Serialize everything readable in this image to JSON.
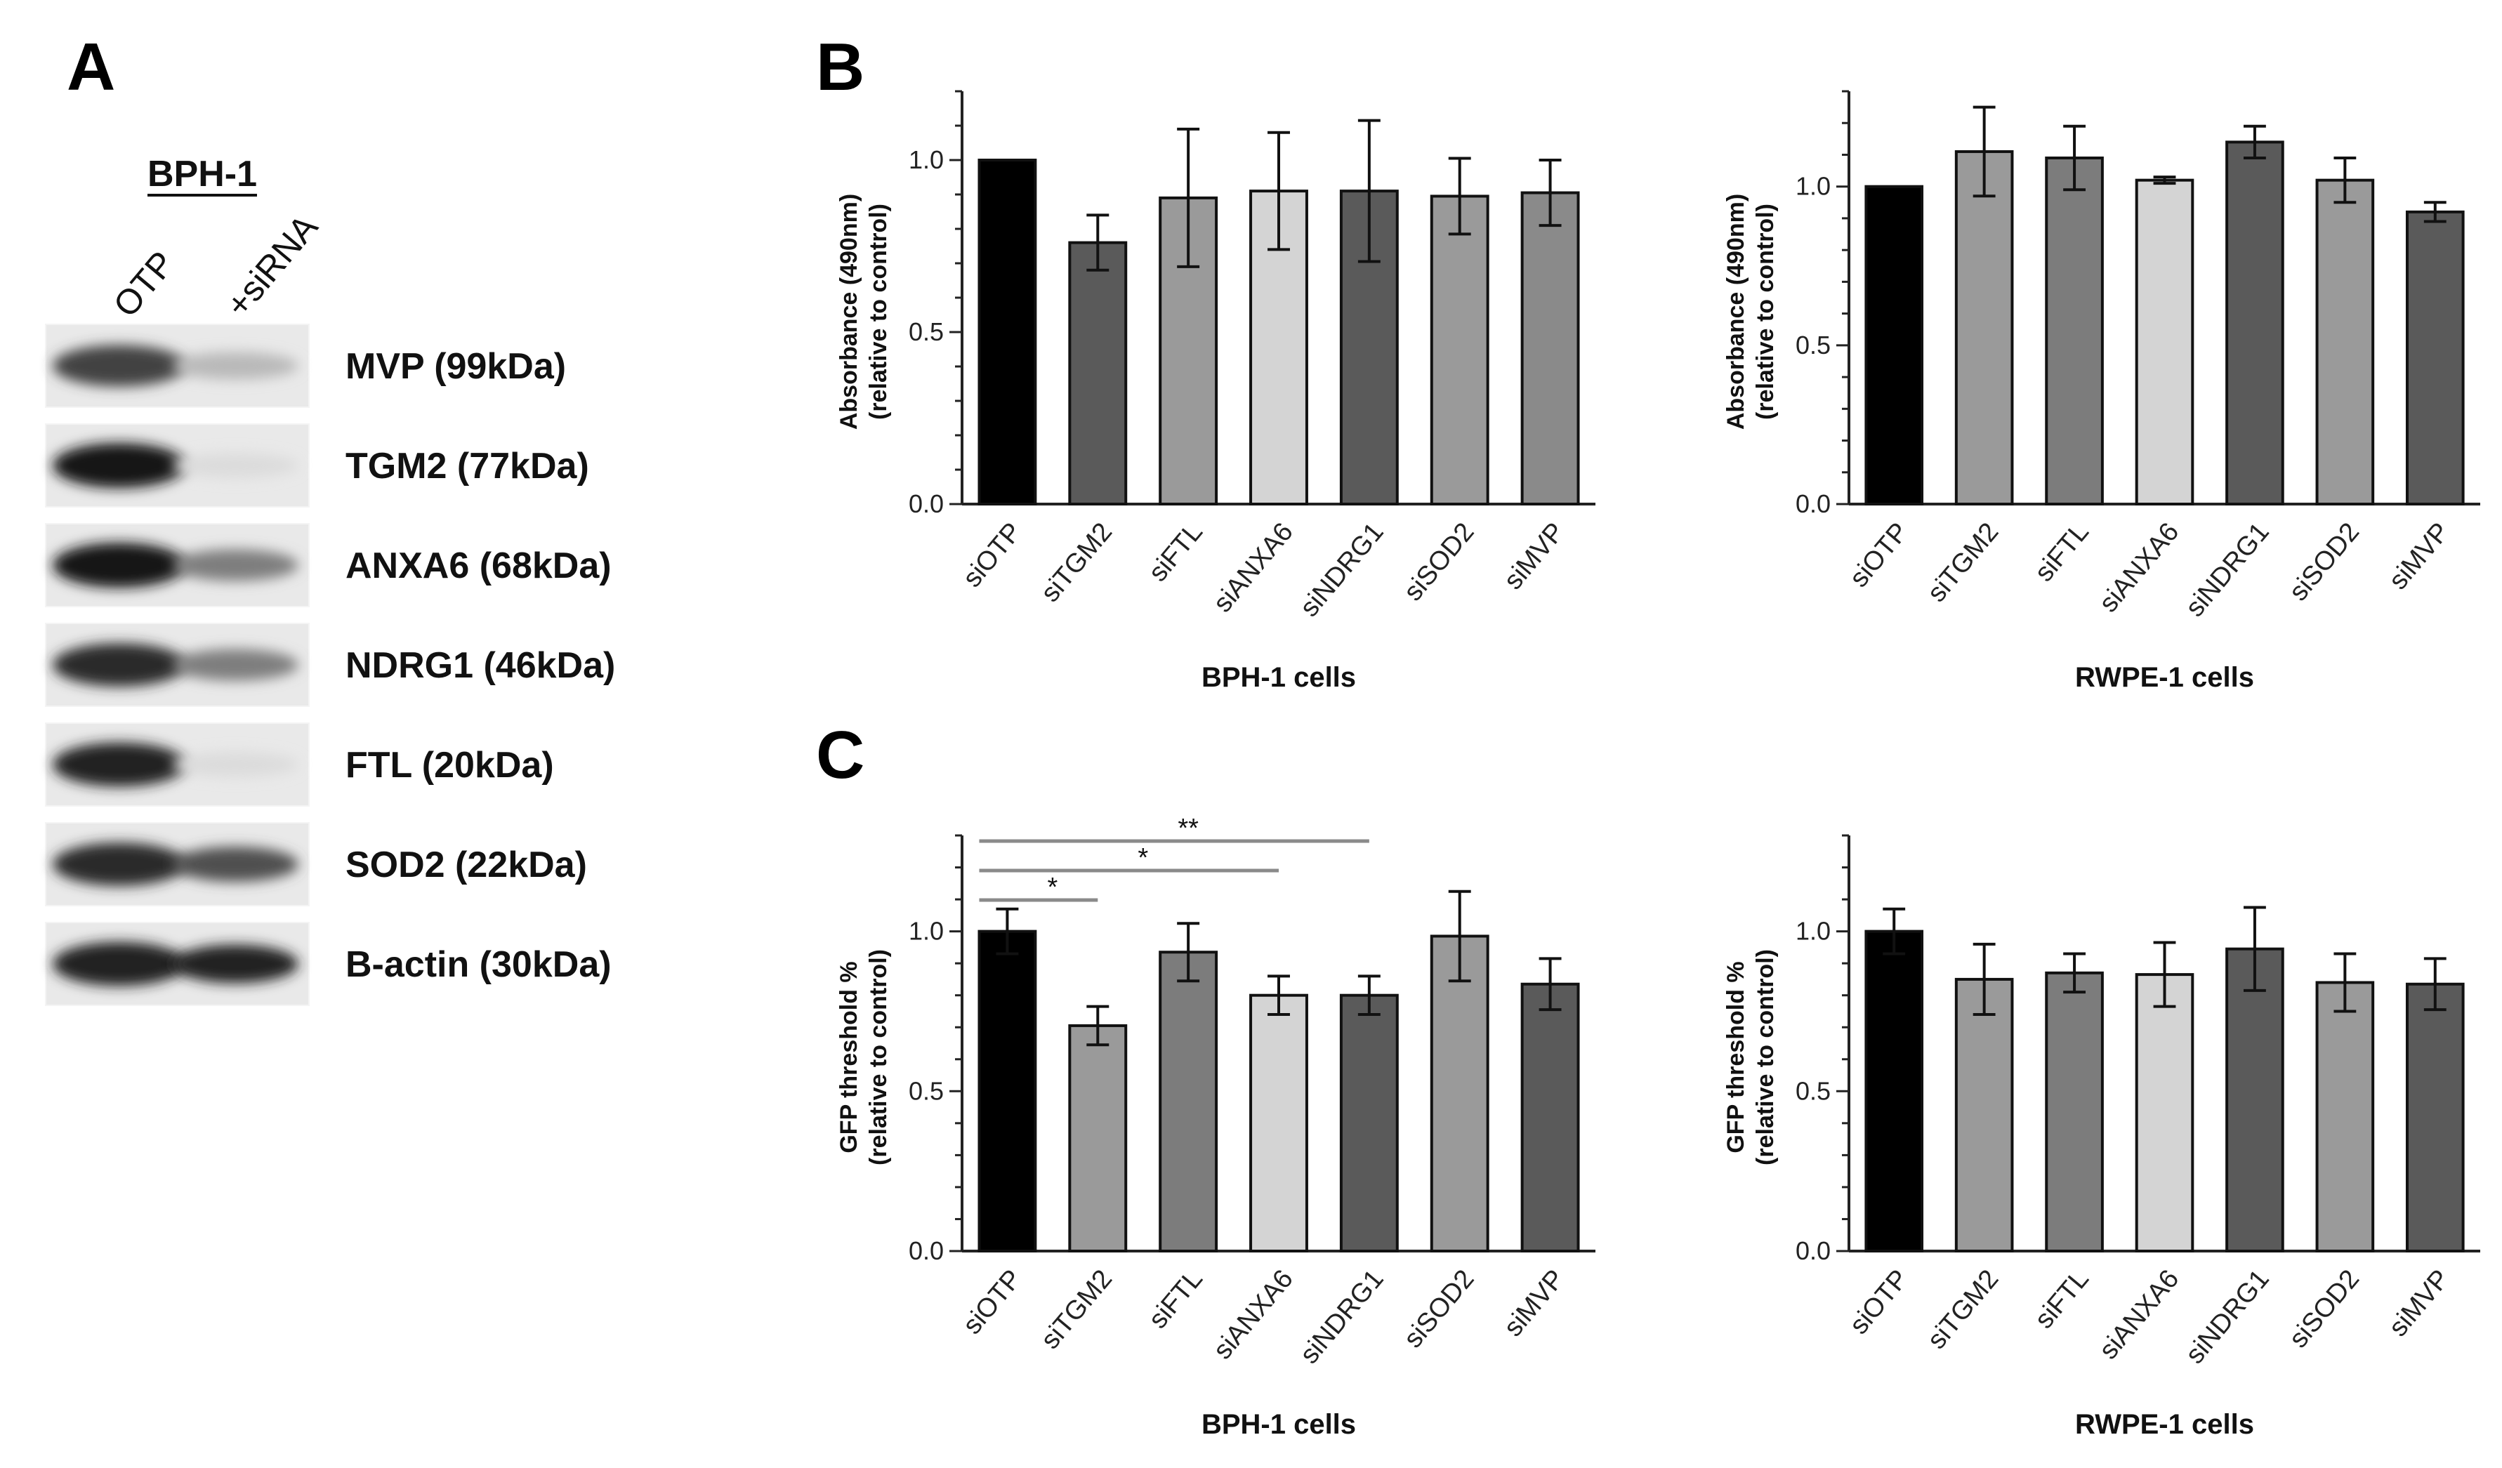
{
  "panel_letters": [
    "A",
    "B",
    "C"
  ],
  "blot": {
    "cell_line": "BPH-1",
    "lanes": [
      "OTP",
      "+siRNA"
    ],
    "bands": [
      {
        "label": "MVP (99kDa)",
        "left_intensity": 0.8,
        "right_intensity": 0.3
      },
      {
        "label": "TGM2 (77kDa)",
        "left_intensity": 1.0,
        "right_intensity": 0.15
      },
      {
        "label": "ANXA6 (68kDa)",
        "left_intensity": 1.0,
        "right_intensity": 0.55
      },
      {
        "label": "NDRG1 (46kDa)",
        "left_intensity": 0.9,
        "right_intensity": 0.55
      },
      {
        "label": "FTL (20kDa)",
        "left_intensity": 0.95,
        "right_intensity": 0.15
      },
      {
        "label": "SOD2 (22kDa)",
        "left_intensity": 0.9,
        "right_intensity": 0.75
      },
      {
        "label": "B-actin (30kDa)",
        "left_intensity": 0.95,
        "right_intensity": 0.95
      }
    ]
  },
  "chart_data": [
    {
      "id": "B1",
      "type": "bar",
      "categories": [
        "siOTP",
        "siTGM2",
        "siFTL",
        "siANXA6",
        "siNDRG1",
        "siSOD2",
        "siMVP"
      ],
      "values": [
        1.0,
        0.76,
        0.89,
        0.91,
        0.91,
        0.895,
        0.905
      ],
      "errors": [
        0,
        0.08,
        0.2,
        0.17,
        0.205,
        0.11,
        0.095
      ],
      "colors": [
        "#000000",
        "#5a5a5a",
        "#9a9a9a",
        "#d4d4d4",
        "#5a5a5a",
        "#9a9a9a",
        "#8a8a8a"
      ],
      "title": "",
      "xlabel": "BPH-1 cells",
      "ylabel": [
        "Absorbance (490nm)",
        "(relative to control)"
      ],
      "ylim": [
        0,
        1.2
      ],
      "yticks": [
        "0.0",
        "0.5",
        "1.0"
      ],
      "significance": []
    },
    {
      "id": "B2",
      "type": "bar",
      "categories": [
        "siOTP",
        "siTGM2",
        "siFTL",
        "siANXA6",
        "siNDRG1",
        "siSOD2",
        "siMVP"
      ],
      "values": [
        1.0,
        1.11,
        1.09,
        1.02,
        1.14,
        1.02,
        0.92
      ],
      "errors": [
        0,
        0.14,
        0.1,
        0.01,
        0.05,
        0.07,
        0.03
      ],
      "colors": [
        "#000000",
        "#9a9a9a",
        "#7c7c7c",
        "#d4d4d4",
        "#5a5a5a",
        "#9a9a9a",
        "#5a5a5a"
      ],
      "title": "",
      "xlabel": "RWPE-1 cells",
      "ylabel": [
        "Absorbance (490nm)",
        "(relative to control)"
      ],
      "ylim": [
        0,
        1.3
      ],
      "yticks": [
        "0.0",
        "0.5",
        "1.0"
      ],
      "significance": []
    },
    {
      "id": "C1",
      "type": "bar",
      "categories": [
        "siOTP",
        "siTGM2",
        "siFTL",
        "siANXA6",
        "siNDRG1",
        "siSOD2",
        "siMVP"
      ],
      "values": [
        1.0,
        0.705,
        0.935,
        0.8,
        0.8,
        0.985,
        0.835
      ],
      "errors": [
        0.07,
        0.06,
        0.09,
        0.06,
        0.06,
        0.14,
        0.08
      ],
      "colors": [
        "#000000",
        "#9a9a9a",
        "#7c7c7c",
        "#d4d4d4",
        "#5a5a5a",
        "#9a9a9a",
        "#5a5a5a"
      ],
      "title": "",
      "xlabel": "BPH-1 cells",
      "ylabel": [
        "GFP threshold %",
        "(relative to control)"
      ],
      "ylim": [
        0,
        1.3
      ],
      "yticks": [
        "0.0",
        "0.5",
        "1.0"
      ],
      "significance": [
        {
          "from": "siOTP",
          "to": "siTGM2",
          "label": "*"
        },
        {
          "from": "siOTP",
          "to": "siANXA6",
          "label": "*"
        },
        {
          "from": "siOTP",
          "to": "siNDRG1",
          "label": "**"
        }
      ]
    },
    {
      "id": "C2",
      "type": "bar",
      "categories": [
        "siOTP",
        "siTGM2",
        "siFTL",
        "siANXA6",
        "siNDRG1",
        "siSOD2",
        "siMVP"
      ],
      "values": [
        1.0,
        0.85,
        0.87,
        0.865,
        0.945,
        0.84,
        0.835
      ],
      "errors": [
        0.07,
        0.11,
        0.06,
        0.1,
        0.13,
        0.09,
        0.08
      ],
      "colors": [
        "#000000",
        "#9a9a9a",
        "#7c7c7c",
        "#d4d4d4",
        "#5a5a5a",
        "#9a9a9a",
        "#5a5a5a"
      ],
      "title": "",
      "xlabel": "RWPE-1 cells",
      "ylabel": [
        "GFP threshold %",
        "(relative to control)"
      ],
      "ylim": [
        0,
        1.3
      ],
      "yticks": [
        "0.0",
        "0.5",
        "1.0"
      ],
      "significance": []
    }
  ]
}
